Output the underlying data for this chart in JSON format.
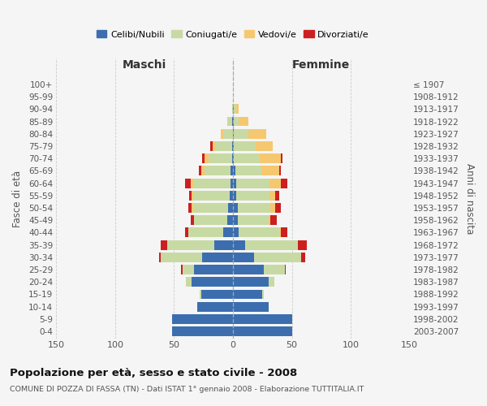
{
  "age_groups": [
    "0-4",
    "5-9",
    "10-14",
    "15-19",
    "20-24",
    "25-29",
    "30-34",
    "35-39",
    "40-44",
    "45-49",
    "50-54",
    "55-59",
    "60-64",
    "65-69",
    "70-74",
    "75-79",
    "80-84",
    "85-89",
    "90-94",
    "95-99",
    "100+"
  ],
  "birth_years": [
    "2003-2007",
    "1998-2002",
    "1993-1997",
    "1988-1992",
    "1983-1987",
    "1978-1982",
    "1973-1977",
    "1968-1972",
    "1963-1967",
    "1958-1962",
    "1953-1957",
    "1948-1952",
    "1943-1947",
    "1938-1942",
    "1933-1937",
    "1928-1932",
    "1923-1927",
    "1918-1922",
    "1913-1917",
    "1908-1912",
    "≤ 1907"
  ],
  "male_celibe": [
    52,
    52,
    30,
    27,
    35,
    33,
    26,
    16,
    8,
    5,
    4,
    3,
    2,
    2,
    1,
    1,
    0,
    1,
    0,
    0,
    0
  ],
  "male_coniugato": [
    0,
    0,
    0,
    1,
    5,
    10,
    35,
    40,
    30,
    28,
    30,
    30,
    32,
    22,
    20,
    14,
    8,
    3,
    1,
    0,
    0
  ],
  "male_vedovo": [
    0,
    0,
    0,
    0,
    0,
    0,
    0,
    0,
    0,
    0,
    1,
    2,
    2,
    3,
    3,
    2,
    2,
    1,
    0,
    0,
    0
  ],
  "male_divorziato": [
    0,
    0,
    0,
    0,
    0,
    1,
    2,
    5,
    3,
    3,
    3,
    2,
    5,
    2,
    2,
    2,
    0,
    0,
    0,
    0,
    0
  ],
  "female_nubile": [
    50,
    50,
    30,
    25,
    30,
    26,
    18,
    10,
    5,
    4,
    4,
    3,
    3,
    2,
    1,
    1,
    1,
    1,
    1,
    0,
    0
  ],
  "female_coniugata": [
    0,
    0,
    0,
    1,
    5,
    18,
    40,
    45,
    35,
    26,
    28,
    28,
    28,
    22,
    22,
    18,
    12,
    4,
    2,
    0,
    0
  ],
  "female_vedova": [
    0,
    0,
    0,
    0,
    0,
    0,
    0,
    0,
    1,
    2,
    4,
    5,
    10,
    15,
    18,
    15,
    15,
    8,
    2,
    0,
    0
  ],
  "female_divorziata": [
    0,
    0,
    0,
    0,
    0,
    1,
    3,
    8,
    5,
    5,
    5,
    3,
    5,
    2,
    1,
    0,
    0,
    0,
    0,
    0,
    0
  ],
  "color_celibe": "#3c6eaf",
  "color_coniugato": "#c8daa4",
  "color_vedovo": "#f5c870",
  "color_divorziato": "#cc2020",
  "xlim": 150,
  "title": "Popolazione per età, sesso e stato civile - 2008",
  "subtitle": "COMUNE DI POZZA DI FASSA (TN) - Dati ISTAT 1° gennaio 2008 - Elaborazione TUTTITALIA.IT",
  "ylabel_left": "Fasce di età",
  "ylabel_right": "Anni di nascita",
  "label_maschi": "Maschi",
  "label_femmine": "Femmine",
  "legend_labels": [
    "Celibi/Nubili",
    "Coniugati/e",
    "Vedovi/e",
    "Divorziati/e"
  ],
  "bg_color": "#f5f5f5"
}
